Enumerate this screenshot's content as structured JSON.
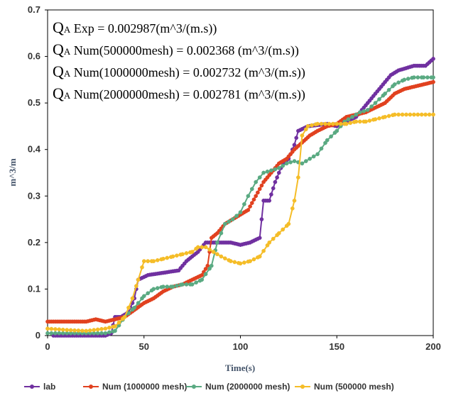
{
  "chart_data": {
    "type": "line",
    "xlabel": "Time(s)",
    "ylabel": "m^3/m",
    "xlim": [
      0,
      200
    ],
    "ylim": [
      0,
      0.7
    ],
    "x_ticks": [
      "0",
      "50",
      "100",
      "150",
      "200"
    ],
    "y_ticks": [
      "0",
      "0.1",
      "0.2",
      "0.3",
      "0.4",
      "0.5",
      "0.6",
      "0.7"
    ],
    "grid": false,
    "legend_position": "bottom",
    "annotations": [
      {
        "q": "Q",
        "sub": "A",
        "rest": " Exp = 0.002987(m^3/(m.s))"
      },
      {
        "q": "Q",
        "sub": "A",
        "rest": " Num(500000mesh) = 0.002368 (m^3/(m.s))"
      },
      {
        "q": "Q",
        "sub": "A",
        "rest": " Num(1000000mesh) = 0.002732 (m^3/(m.s))"
      },
      {
        "q": "Q",
        "sub": "A",
        "rest": " Num(2000000mesh) = 0.002781 (m^3/(m.s))"
      }
    ],
    "series": [
      {
        "name": "lab",
        "color": "#7030a0",
        "marker_every": 1,
        "points": [
          [
            3,
            0
          ],
          [
            10,
            0
          ],
          [
            20,
            0
          ],
          [
            30,
            0
          ],
          [
            33,
            0.005
          ],
          [
            35,
            0.04
          ],
          [
            38,
            0.04
          ],
          [
            42,
            0.05
          ],
          [
            45,
            0.08
          ],
          [
            47,
            0.12
          ],
          [
            52,
            0.13
          ],
          [
            60,
            0.135
          ],
          [
            68,
            0.14
          ],
          [
            72,
            0.16
          ],
          [
            78,
            0.18
          ],
          [
            82,
            0.2
          ],
          [
            88,
            0.2
          ],
          [
            95,
            0.2
          ],
          [
            100,
            0.195
          ],
          [
            105,
            0.2
          ],
          [
            110,
            0.21
          ],
          [
            112,
            0.29
          ],
          [
            115,
            0.29
          ],
          [
            118,
            0.33
          ],
          [
            122,
            0.37
          ],
          [
            125,
            0.38
          ],
          [
            128,
            0.41
          ],
          [
            130,
            0.44
          ],
          [
            135,
            0.45
          ],
          [
            145,
            0.455
          ],
          [
            150,
            0.45
          ],
          [
            160,
            0.47
          ],
          [
            168,
            0.51
          ],
          [
            172,
            0.53
          ],
          [
            178,
            0.56
          ],
          [
            182,
            0.57
          ],
          [
            190,
            0.58
          ],
          [
            196,
            0.58
          ],
          [
            200,
            0.595
          ]
        ]
      },
      {
        "name": "Num (1000000 mesh)",
        "color": "#e1411f",
        "marker_every": 1,
        "points": [
          [
            0,
            0.03
          ],
          [
            10,
            0.03
          ],
          [
            20,
            0.03
          ],
          [
            25,
            0.035
          ],
          [
            30,
            0.03
          ],
          [
            35,
            0.035
          ],
          [
            40,
            0.04
          ],
          [
            45,
            0.055
          ],
          [
            50,
            0.07
          ],
          [
            55,
            0.08
          ],
          [
            60,
            0.095
          ],
          [
            65,
            0.105
          ],
          [
            70,
            0.11
          ],
          [
            75,
            0.12
          ],
          [
            80,
            0.13
          ],
          [
            83,
            0.15
          ],
          [
            85,
            0.21
          ],
          [
            88,
            0.22
          ],
          [
            92,
            0.24
          ],
          [
            96,
            0.25
          ],
          [
            100,
            0.26
          ],
          [
            104,
            0.27
          ],
          [
            108,
            0.3
          ],
          [
            112,
            0.33
          ],
          [
            116,
            0.35
          ],
          [
            120,
            0.37
          ],
          [
            124,
            0.38
          ],
          [
            128,
            0.4
          ],
          [
            132,
            0.415
          ],
          [
            136,
            0.43
          ],
          [
            140,
            0.44
          ],
          [
            145,
            0.45
          ],
          [
            150,
            0.455
          ],
          [
            155,
            0.47
          ],
          [
            160,
            0.475
          ],
          [
            165,
            0.48
          ],
          [
            170,
            0.49
          ],
          [
            175,
            0.5
          ],
          [
            180,
            0.52
          ],
          [
            185,
            0.53
          ],
          [
            190,
            0.535
          ],
          [
            195,
            0.54
          ],
          [
            200,
            0.545
          ]
        ]
      },
      {
        "name": "Num (2000000 mesh)",
        "color": "#5aaa82",
        "marker_every": 2,
        "points": [
          [
            0,
            0.005
          ],
          [
            10,
            0.005
          ],
          [
            20,
            0.005
          ],
          [
            30,
            0.005
          ],
          [
            35,
            0.01
          ],
          [
            40,
            0.04
          ],
          [
            45,
            0.06
          ],
          [
            50,
            0.085
          ],
          [
            55,
            0.1
          ],
          [
            60,
            0.105
          ],
          [
            65,
            0.105
          ],
          [
            70,
            0.11
          ],
          [
            75,
            0.11
          ],
          [
            80,
            0.12
          ],
          [
            85,
            0.15
          ],
          [
            88,
            0.2
          ],
          [
            92,
            0.24
          ],
          [
            96,
            0.25
          ],
          [
            100,
            0.265
          ],
          [
            104,
            0.3
          ],
          [
            108,
            0.33
          ],
          [
            112,
            0.35
          ],
          [
            116,
            0.355
          ],
          [
            120,
            0.36
          ],
          [
            124,
            0.37
          ],
          [
            128,
            0.375
          ],
          [
            132,
            0.37
          ],
          [
            136,
            0.38
          ],
          [
            140,
            0.39
          ],
          [
            145,
            0.42
          ],
          [
            150,
            0.44
          ],
          [
            154,
            0.46
          ],
          [
            158,
            0.47
          ],
          [
            162,
            0.48
          ],
          [
            166,
            0.485
          ],
          [
            170,
            0.5
          ],
          [
            175,
            0.52
          ],
          [
            180,
            0.54
          ],
          [
            185,
            0.55
          ],
          [
            190,
            0.555
          ],
          [
            195,
            0.555
          ],
          [
            200,
            0.555
          ]
        ]
      },
      {
        "name": "Num (500000 mesh)",
        "color": "#f5bd28",
        "marker_every": 2,
        "points": [
          [
            0,
            0.015
          ],
          [
            10,
            0.012
          ],
          [
            20,
            0.01
          ],
          [
            30,
            0.015
          ],
          [
            35,
            0.02
          ],
          [
            40,
            0.04
          ],
          [
            44,
            0.08
          ],
          [
            47,
            0.12
          ],
          [
            50,
            0.16
          ],
          [
            55,
            0.16
          ],
          [
            60,
            0.165
          ],
          [
            65,
            0.17
          ],
          [
            70,
            0.175
          ],
          [
            75,
            0.18
          ],
          [
            78,
            0.19
          ],
          [
            82,
            0.19
          ],
          [
            86,
            0.18
          ],
          [
            90,
            0.17
          ],
          [
            95,
            0.16
          ],
          [
            100,
            0.155
          ],
          [
            105,
            0.16
          ],
          [
            110,
            0.17
          ],
          [
            115,
            0.2
          ],
          [
            120,
            0.22
          ],
          [
            125,
            0.24
          ],
          [
            128,
            0.29
          ],
          [
            130,
            0.34
          ],
          [
            132,
            0.43
          ],
          [
            135,
            0.45
          ],
          [
            140,
            0.455
          ],
          [
            150,
            0.455
          ],
          [
            155,
            0.455
          ],
          [
            160,
            0.46
          ],
          [
            165,
            0.46
          ],
          [
            170,
            0.465
          ],
          [
            175,
            0.47
          ],
          [
            180,
            0.475
          ],
          [
            190,
            0.475
          ],
          [
            200,
            0.475
          ]
        ]
      }
    ]
  }
}
